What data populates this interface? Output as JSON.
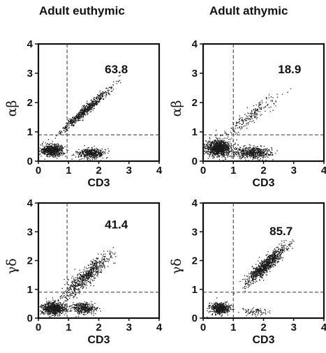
{
  "columns": [
    "Adult euthymic",
    "Adult athymic"
  ],
  "chart_data": [
    {
      "type": "scatter",
      "title": "Adult euthymic",
      "xlabel": "CD3",
      "ylabel": "αβ",
      "xlim": [
        0,
        4
      ],
      "ylim": [
        0,
        4
      ],
      "xticks": [
        "0",
        "1",
        "2",
        "3",
        "4"
      ],
      "yticks": [
        "0",
        "1",
        "2",
        "3",
        "4"
      ],
      "gates": {
        "x": 0.95,
        "y": 0.9
      },
      "annotation": "63.8",
      "populations": [
        {
          "center": [
            1.55,
            1.75
          ],
          "spread": [
            0.25,
            0.55
          ],
          "tilt": 0.9,
          "count": 650
        },
        {
          "center": [
            0.45,
            0.38
          ],
          "spread": [
            0.35,
            0.18
          ],
          "tilt": 0,
          "count": 650
        },
        {
          "center": [
            1.75,
            0.28
          ],
          "spread": [
            0.4,
            0.15
          ],
          "tilt": 0,
          "count": 450
        }
      ]
    },
    {
      "type": "scatter",
      "title": "Adult athymic",
      "xlabel": "CD3",
      "ylabel": "αβ",
      "xlim": [
        0,
        4
      ],
      "ylim": [
        0,
        4
      ],
      "xticks": [
        "0",
        "1",
        "2",
        "3",
        "4"
      ],
      "yticks": [
        "0",
        "1",
        "2",
        "3",
        "4"
      ],
      "gates": {
        "x": 1.0,
        "y": 0.9
      },
      "annotation": "18.9",
      "populations": [
        {
          "center": [
            1.5,
            1.5
          ],
          "spread": [
            0.45,
            0.6
          ],
          "tilt": 0.8,
          "count": 220
        },
        {
          "center": [
            0.5,
            0.45
          ],
          "spread": [
            0.4,
            0.25
          ],
          "tilt": 0,
          "count": 950
        },
        {
          "center": [
            1.6,
            0.3
          ],
          "spread": [
            0.55,
            0.18
          ],
          "tilt": 0,
          "count": 550
        }
      ]
    },
    {
      "type": "scatter",
      "title": "Adult euthymic",
      "xlabel": "CD3",
      "ylabel": "γδ",
      "xlim": [
        0,
        4
      ],
      "ylim": [
        0,
        4
      ],
      "xticks": [
        "0",
        "1",
        "2",
        "3",
        "4"
      ],
      "yticks": [
        "0",
        "1",
        "2",
        "3",
        "4"
      ],
      "gates": {
        "x": 0.95,
        "y": 0.9
      },
      "annotation": "41.4",
      "populations": [
        {
          "center": [
            1.55,
            1.45
          ],
          "spread": [
            0.5,
            0.55
          ],
          "tilt": 0.95,
          "count": 650
        },
        {
          "center": [
            0.5,
            0.35
          ],
          "spread": [
            0.35,
            0.2
          ],
          "tilt": 0,
          "count": 700
        },
        {
          "center": [
            1.5,
            0.35
          ],
          "spread": [
            0.35,
            0.18
          ],
          "tilt": 0,
          "count": 350
        }
      ]
    },
    {
      "type": "scatter",
      "title": "Adult athymic",
      "xlabel": "CD3",
      "ylabel": "γδ",
      "xlim": [
        0,
        4
      ],
      "ylim": [
        0,
        4
      ],
      "xticks": [
        "0",
        "1",
        "2",
        "3",
        "4"
      ],
      "yticks": [
        "0",
        "1",
        "2",
        "3",
        "4"
      ],
      "gates": {
        "x": 1.0,
        "y": 0.9
      },
      "annotation": "85.7",
      "populations": [
        {
          "center": [
            2.05,
            1.85
          ],
          "spread": [
            0.4,
            0.45
          ],
          "tilt": 1.0,
          "count": 900
        },
        {
          "center": [
            0.55,
            0.35
          ],
          "spread": [
            0.3,
            0.18
          ],
          "tilt": 0,
          "count": 500
        },
        {
          "center": [
            1.7,
            0.25
          ],
          "spread": [
            0.45,
            0.12
          ],
          "tilt": 0,
          "count": 80
        }
      ]
    }
  ]
}
